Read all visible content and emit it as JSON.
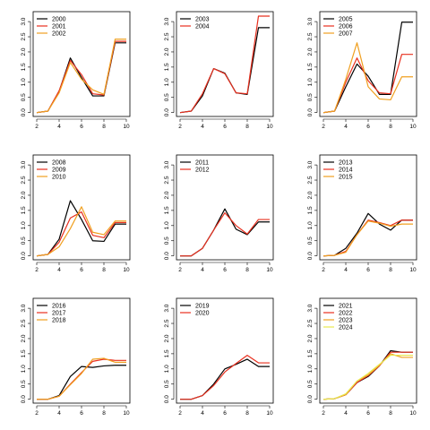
{
  "figure": {
    "layout": "3x3 grid of small-multiple line plots",
    "colors": {
      "black": "#000000",
      "red": "#e8301f",
      "orange": "#f0a020",
      "yellow": "#e8e850"
    }
  },
  "chart_data": [
    {
      "type": "line",
      "x": [
        2,
        3,
        4,
        5,
        6,
        7,
        8,
        9,
        10
      ],
      "xlim": [
        2,
        10
      ],
      "ylim": [
        0,
        3.2
      ],
      "xticks": [
        2,
        4,
        6,
        8,
        10
      ],
      "yticks": [
        0.0,
        0.5,
        1.0,
        1.5,
        2.0,
        2.5,
        3.0
      ],
      "xtick_labels": [
        "2",
        "4",
        "6",
        "8",
        "10"
      ],
      "ytick_labels": [
        "0.0",
        "0.5",
        "1.0",
        "1.5",
        "2.0",
        "2.5",
        "3.0"
      ],
      "legend": "top-left",
      "series": [
        {
          "name": "2000",
          "color": "#000000",
          "values": [
            0.0,
            0.05,
            0.7,
            1.8,
            1.15,
            0.55,
            0.55,
            2.3,
            2.3
          ]
        },
        {
          "name": "2001",
          "color": "#e8301f",
          "values": [
            0.0,
            0.05,
            0.72,
            1.72,
            1.25,
            0.62,
            0.58,
            2.35,
            2.35
          ]
        },
        {
          "name": "2002",
          "color": "#f0a020",
          "values": [
            0.0,
            0.05,
            0.65,
            1.65,
            1.1,
            0.75,
            0.6,
            2.42,
            2.42
          ]
        }
      ]
    },
    {
      "type": "line",
      "x": [
        2,
        3,
        4,
        5,
        6,
        7,
        8,
        9,
        10
      ],
      "xlim": [
        2,
        10
      ],
      "ylim": [
        0,
        3.2
      ],
      "xticks": [
        2,
        4,
        6,
        8,
        10
      ],
      "yticks": [
        0.0,
        0.5,
        1.0,
        1.5,
        2.0,
        2.5,
        3.0
      ],
      "xtick_labels": [
        "2",
        "4",
        "6",
        "8",
        "10"
      ],
      "ytick_labels": [
        "0.0",
        "0.5",
        "1.0",
        "1.5",
        "2.0",
        "2.5",
        "3.0"
      ],
      "legend": "top-left",
      "series": [
        {
          "name": "2003",
          "color": "#000000",
          "values": [
            0.0,
            0.05,
            0.55,
            1.45,
            1.3,
            0.65,
            0.6,
            2.8,
            2.8
          ]
        },
        {
          "name": "2004",
          "color": "#e8301f",
          "values": [
            0.0,
            0.05,
            0.62,
            1.45,
            1.28,
            0.65,
            0.62,
            3.18,
            3.18
          ]
        }
      ]
    },
    {
      "type": "line",
      "x": [
        2,
        3,
        4,
        5,
        6,
        7,
        8,
        9,
        10
      ],
      "xlim": [
        2,
        10
      ],
      "ylim": [
        0,
        3.2
      ],
      "xticks": [
        2,
        4,
        6,
        8,
        10
      ],
      "yticks": [
        0.0,
        0.5,
        1.0,
        1.5,
        2.0,
        2.5,
        3.0
      ],
      "xtick_labels": [
        "2",
        "4",
        "6",
        "8",
        "10"
      ],
      "ytick_labels": [
        "0.0",
        "0.5",
        "1.0",
        "1.5",
        "2.0",
        "2.5",
        "3.0"
      ],
      "legend": "top-left",
      "series": [
        {
          "name": "2005",
          "color": "#000000",
          "values": [
            0.0,
            0.05,
            0.85,
            1.6,
            1.2,
            0.6,
            0.6,
            2.98,
            2.98
          ]
        },
        {
          "name": "2006",
          "color": "#e8301f",
          "values": [
            0.0,
            0.05,
            1.0,
            1.8,
            1.05,
            0.65,
            0.62,
            1.92,
            1.92
          ]
        },
        {
          "name": "2007",
          "color": "#f0a020",
          "values": [
            0.0,
            0.05,
            1.1,
            2.3,
            0.85,
            0.45,
            0.42,
            1.18,
            1.18
          ]
        }
      ]
    },
    {
      "type": "line",
      "x": [
        2,
        3,
        4,
        5,
        6,
        7,
        8,
        9,
        10
      ],
      "xlim": [
        2,
        10
      ],
      "ylim": [
        0,
        3.2
      ],
      "xticks": [
        2,
        4,
        6,
        8,
        10
      ],
      "yticks": [
        0.0,
        0.5,
        1.0,
        1.5,
        2.0,
        2.5,
        3.0
      ],
      "xtick_labels": [
        "2",
        "4",
        "6",
        "8",
        "10"
      ],
      "ytick_labels": [
        "0.0",
        "0.5",
        "1.0",
        "1.5",
        "2.0",
        "2.5",
        "3.0"
      ],
      "legend": "top-left",
      "series": [
        {
          "name": "2008",
          "color": "#000000",
          "values": [
            0.0,
            0.05,
            0.55,
            1.82,
            1.2,
            0.5,
            0.48,
            1.05,
            1.05
          ]
        },
        {
          "name": "2009",
          "color": "#e8301f",
          "values": [
            0.0,
            0.05,
            0.45,
            1.25,
            1.45,
            0.68,
            0.6,
            1.1,
            1.1
          ]
        },
        {
          "name": "2010",
          "color": "#f0a020",
          "values": [
            0.0,
            0.05,
            0.3,
            0.9,
            1.62,
            0.78,
            0.7,
            1.15,
            1.15
          ]
        }
      ]
    },
    {
      "type": "line",
      "x": [
        2,
        3,
        4,
        5,
        6,
        7,
        8,
        9,
        10
      ],
      "xlim": [
        2,
        10
      ],
      "ylim": [
        0,
        3.2
      ],
      "xticks": [
        2,
        4,
        6,
        8,
        10
      ],
      "yticks": [
        0.0,
        0.5,
        1.0,
        1.5,
        2.0,
        2.5,
        3.0
      ],
      "xtick_labels": [
        "2",
        "4",
        "6",
        "8",
        "10"
      ],
      "ytick_labels": [
        "0.0",
        "0.5",
        "1.0",
        "1.5",
        "2.0",
        "2.5",
        "3.0"
      ],
      "legend": "top-left",
      "series": [
        {
          "name": "2011",
          "color": "#000000",
          "values": [
            0.0,
            0.0,
            0.25,
            0.85,
            1.55,
            0.88,
            0.7,
            1.12,
            1.12
          ]
        },
        {
          "name": "2012",
          "color": "#e8301f",
          "values": [
            0.0,
            0.0,
            0.25,
            0.85,
            1.42,
            1.0,
            0.72,
            1.2,
            1.2
          ]
        }
      ]
    },
    {
      "type": "line",
      "x": [
        2,
        3,
        4,
        5,
        6,
        7,
        8,
        9,
        10
      ],
      "xlim": [
        2,
        10
      ],
      "ylim": [
        0,
        3.2
      ],
      "xticks": [
        2,
        4,
        6,
        8,
        10
      ],
      "yticks": [
        0.0,
        0.5,
        1.0,
        1.5,
        2.0,
        2.5,
        3.0
      ],
      "xtick_labels": [
        "2",
        "4",
        "6",
        "8",
        "10"
      ],
      "ytick_labels": [
        "0.0",
        "0.5",
        "1.0",
        "1.5",
        "2.0",
        "2.5",
        "3.0"
      ],
      "legend": "top-left",
      "series": [
        {
          "name": "2013",
          "color": "#000000",
          "values": [
            0.0,
            0.02,
            0.25,
            0.75,
            1.4,
            1.05,
            0.85,
            1.18,
            1.18
          ]
        },
        {
          "name": "2014",
          "color": "#e8301f",
          "values": [
            0.0,
            0.02,
            0.15,
            0.7,
            1.18,
            1.1,
            1.0,
            1.18,
            1.18
          ]
        },
        {
          "name": "2015",
          "color": "#f0a020",
          "values": [
            0.0,
            0.02,
            0.12,
            0.7,
            1.15,
            1.08,
            0.98,
            1.05,
            1.05
          ]
        }
      ]
    },
    {
      "type": "line",
      "x": [
        2,
        3,
        4,
        5,
        6,
        7,
        8,
        9,
        10
      ],
      "xlim": [
        2,
        10
      ],
      "ylim": [
        0,
        3.2
      ],
      "xticks": [
        2,
        4,
        6,
        8,
        10
      ],
      "yticks": [
        0.0,
        0.5,
        1.0,
        1.5,
        2.0,
        2.5,
        3.0
      ],
      "xtick_labels": [
        "2",
        "4",
        "6",
        "8",
        "10"
      ],
      "ytick_labels": [
        "0.0",
        "0.5",
        "1.0",
        "1.5",
        "2.0",
        "2.5",
        "3.0"
      ],
      "legend": "top-left",
      "series": [
        {
          "name": "2016",
          "color": "#000000",
          "values": [
            0.0,
            0.0,
            0.12,
            0.75,
            1.08,
            1.05,
            1.1,
            1.12,
            1.12
          ]
        },
        {
          "name": "2017",
          "color": "#e8301f",
          "values": [
            0.0,
            0.0,
            0.1,
            0.5,
            0.88,
            1.25,
            1.32,
            1.28,
            1.28
          ]
        },
        {
          "name": "2018",
          "color": "#f0a020",
          "values": [
            0.0,
            0.0,
            0.1,
            0.48,
            0.85,
            1.32,
            1.35,
            1.22,
            1.22
          ]
        }
      ]
    },
    {
      "type": "line",
      "x": [
        2,
        3,
        4,
        5,
        6,
        7,
        8,
        9,
        10
      ],
      "xlim": [
        2,
        10
      ],
      "ylim": [
        0,
        3.2
      ],
      "xticks": [
        2,
        4,
        6,
        8,
        10
      ],
      "yticks": [
        0.0,
        0.5,
        1.0,
        1.5,
        2.0,
        2.5,
        3.0
      ],
      "xtick_labels": [
        "2",
        "4",
        "6",
        "8",
        "10"
      ],
      "ytick_labels": [
        "0.0",
        "0.5",
        "1.0",
        "1.5",
        "2.0",
        "2.5",
        "3.0"
      ],
      "legend": "top-left",
      "series": [
        {
          "name": "2019",
          "color": "#000000",
          "values": [
            0.0,
            0.0,
            0.12,
            0.5,
            1.0,
            1.15,
            1.32,
            1.08,
            1.08
          ]
        },
        {
          "name": "2020",
          "color": "#e8301f",
          "values": [
            0.0,
            0.0,
            0.12,
            0.45,
            0.9,
            1.18,
            1.45,
            1.2,
            1.2
          ]
        }
      ]
    },
    {
      "type": "line",
      "x": [
        2,
        3,
        4,
        5,
        6,
        7,
        8,
        9,
        10
      ],
      "xlim": [
        2,
        10
      ],
      "ylim": [
        0,
        3.2
      ],
      "xticks": [
        2,
        4,
        6,
        8,
        10
      ],
      "yticks": [
        0.0,
        0.5,
        1.0,
        1.5,
        2.0,
        2.5,
        3.0
      ],
      "xtick_labels": [
        "2",
        "4",
        "6",
        "8",
        "10"
      ],
      "ytick_labels": [
        "0.0",
        "0.5",
        "1.0",
        "1.5",
        "2.0",
        "2.5",
        "3.0"
      ],
      "legend": "top-left",
      "series": [
        {
          "name": "2021",
          "color": "#000000",
          "values": [
            0.0,
            0.02,
            0.15,
            0.55,
            0.75,
            1.1,
            1.6,
            1.55,
            1.55
          ]
        },
        {
          "name": "2022",
          "color": "#e8301f",
          "values": [
            0.0,
            0.02,
            0.15,
            0.55,
            0.78,
            1.1,
            1.55,
            1.55,
            1.55
          ]
        },
        {
          "name": "2023",
          "color": "#f0a020",
          "values": [
            0.0,
            0.02,
            0.15,
            0.6,
            0.8,
            1.12,
            1.5,
            1.38,
            1.38
          ]
        },
        {
          "name": "2024",
          "color": "#e8e850",
          "values": [
            0.0,
            0.02,
            0.18,
            0.6,
            0.85,
            1.15,
            1.45,
            1.45,
            1.45
          ]
        }
      ]
    }
  ]
}
